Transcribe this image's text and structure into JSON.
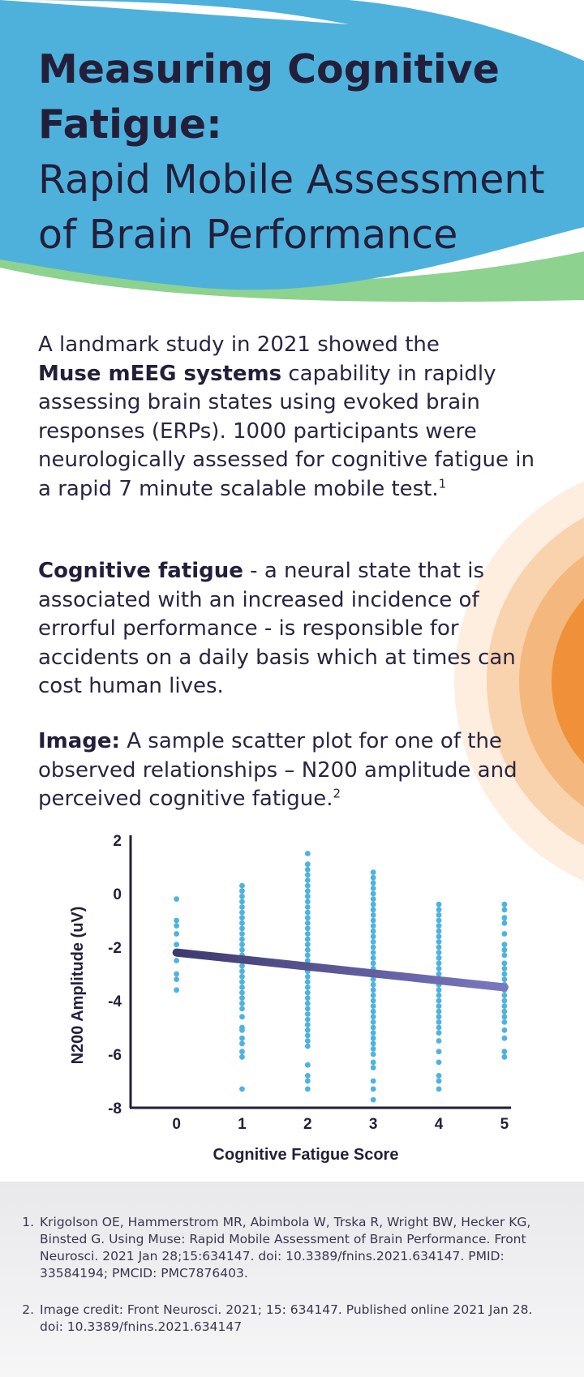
{
  "header": {
    "title_bold_line1": "Measuring Cognitive",
    "title_bold_line2": "Fatigue:",
    "title_line3": "Rapid Mobile Assessment",
    "title_line4": "of Brain Performance"
  },
  "intro": {
    "text_before": "A landmark study in 2021 showed the",
    "bold": "Muse mEEG systems",
    "text_after": " capability in rapidly assessing brain states using evoked brain responses (ERPs). 1000 participants were neurologically assessed for cognitive fatigue in a rapid 7 minute scalable mobile test.",
    "sup": "1"
  },
  "definition": {
    "bold": "Cognitive fatigue",
    "text": " - a neural state that is associated with an increased incidence of errorful performance - is responsible for accidents on a daily basis which at times can cost human lives."
  },
  "image_caption": {
    "bold": "Image:",
    "text": " A sample scatter plot for one of the observed relationships – N200 amplitude and perceived cognitive fatigue.",
    "sup": "2"
  },
  "chart_data": {
    "type": "scatter",
    "xlabel": "Cognitive Fatigue Score",
    "ylabel": "N200 Amplitude (uV)",
    "x_ticks": [
      "0",
      "1",
      "2",
      "3",
      "4",
      "5"
    ],
    "y_ticks": [
      "2",
      "0",
      "-2",
      "-4",
      "-6",
      "-8"
    ],
    "ylim": [
      -8,
      2
    ],
    "xlim": [
      -0.7,
      5.1
    ],
    "point_color": "#4db3df",
    "trend_color_start": "#3e3a6e",
    "trend_color_end": "#7a78c0",
    "trend_line": {
      "x": [
        0,
        5
      ],
      "y": [
        -2.2,
        -3.5
      ]
    },
    "columns": [
      {
        "x": 0,
        "y": [
          -0.2,
          -1.0,
          -1.2,
          -1.5,
          -1.9,
          -2.5,
          -3.0,
          -3.2,
          -3.6
        ]
      },
      {
        "x": 1,
        "y": [
          0.3,
          0.1,
          -0.1,
          -0.3,
          -0.5,
          -0.7,
          -0.9,
          -1.1,
          -1.3,
          -1.5,
          -1.7,
          -1.9,
          -2.1,
          -2.3,
          -2.5,
          -2.7,
          -2.9,
          -3.1,
          -3.3,
          -3.5,
          -3.7,
          -3.9,
          -4.1,
          -4.3,
          -4.6,
          -5.0,
          -5.1,
          -5.4,
          -5.6,
          -5.9,
          -6.1,
          -7.3
        ]
      },
      {
        "x": 2,
        "y": [
          1.5,
          1.1,
          0.9,
          0.7,
          0.5,
          0.3,
          0.1,
          -0.1,
          -0.3,
          -0.5,
          -0.7,
          -0.9,
          -1.1,
          -1.3,
          -1.5,
          -1.7,
          -1.9,
          -2.1,
          -2.3,
          -2.5,
          -2.7,
          -2.9,
          -3.1,
          -3.3,
          -3.5,
          -3.7,
          -3.9,
          -4.1,
          -4.3,
          -4.5,
          -4.7,
          -4.9,
          -5.1,
          -5.3,
          -5.5,
          -5.7,
          -6.4,
          -6.8,
          -7.0,
          -7.3
        ]
      },
      {
        "x": 3,
        "y": [
          0.8,
          0.6,
          0.4,
          0.2,
          0.0,
          -0.2,
          -0.4,
          -0.6,
          -0.8,
          -1.0,
          -1.2,
          -1.4,
          -1.6,
          -1.8,
          -2.0,
          -2.2,
          -2.4,
          -2.6,
          -2.8,
          -3.0,
          -3.2,
          -3.4,
          -3.6,
          -3.8,
          -4.0,
          -4.2,
          -4.4,
          -4.6,
          -4.8,
          -5.0,
          -5.2,
          -5.4,
          -5.6,
          -5.8,
          -6.0,
          -6.3,
          -6.5,
          -7.0,
          -7.3,
          -7.7
        ]
      },
      {
        "x": 4,
        "y": [
          -0.4,
          -0.6,
          -0.8,
          -1.0,
          -1.2,
          -1.4,
          -1.6,
          -1.8,
          -2.0,
          -2.2,
          -2.4,
          -2.6,
          -2.8,
          -3.0,
          -3.2,
          -3.4,
          -3.6,
          -3.8,
          -4.0,
          -4.2,
          -4.4,
          -4.6,
          -4.8,
          -5.0,
          -5.2,
          -5.5,
          -5.9,
          -6.3,
          -6.8,
          -7.0,
          -7.3
        ]
      },
      {
        "x": 5,
        "y": [
          -0.4,
          -0.6,
          -0.9,
          -1.1,
          -1.5,
          -1.9,
          -2.1,
          -2.3,
          -2.6,
          -2.8,
          -3.0,
          -3.2,
          -3.4,
          -3.6,
          -3.8,
          -4.0,
          -4.2,
          -4.4,
          -4.6,
          -4.8,
          -5.1,
          -5.4,
          -5.9,
          -6.1
        ]
      }
    ]
  },
  "references": [
    "Krigolson OE, Hammerstrom MR, Abimbola W, Trska R, Wright BW, Hecker KG, Binsted G. Using Muse: Rapid Mobile Assessment of Brain Performance. Front Neurosci. 2021 Jan 28;15:634147. doi: 10.3389/fnins.2021.634147. PMID: 33584194; PMCID: PMC7876403.",
    "Image credit: Front Neurosci. 2021; 15: 634147. Published online 2021 Jan 28. doi: 10.3389/fnins.2021.634147"
  ],
  "colors": {
    "header_blue": "#4eb1dc",
    "header_green": "#8dd28e",
    "accent_orange": "#f0913a",
    "footer_gray": "#ececef"
  }
}
